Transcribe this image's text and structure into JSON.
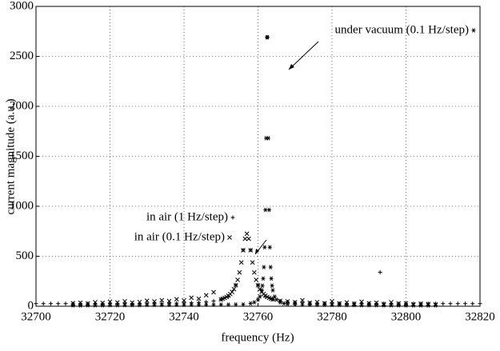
{
  "chart_data": {
    "type": "scatter",
    "xlabel": "frequency (Hz)",
    "ylabel": "current magnitude (a.u.)",
    "xlim": [
      32700,
      32820
    ],
    "xticks": [
      32700,
      32720,
      32740,
      32760,
      32780,
      32800,
      32820
    ],
    "ylim": [
      0,
      3000
    ],
    "yticks": [
      0,
      500,
      1000,
      1500,
      2000,
      2500,
      3000
    ],
    "grid": true,
    "series": [
      {
        "name": "in air (1 Hz/step)",
        "color": "#000000",
        "marker": "plus",
        "x": [
          32700,
          32702,
          32704,
          32706,
          32708,
          32710,
          32712,
          32714,
          32716,
          32718,
          32720,
          32722,
          32724,
          32726,
          32728,
          32730,
          32732,
          32734,
          32736,
          32738,
          32740,
          32742,
          32744,
          32746,
          32748,
          32750,
          32752,
          32754,
          32756,
          32758,
          32760,
          32762,
          32764,
          32766,
          32768,
          32770,
          32772,
          32774,
          32776,
          32778,
          32780,
          32782,
          32784,
          32786,
          32788,
          32790,
          32792,
          32794,
          32796,
          32798,
          32800,
          32802,
          32804,
          32806,
          32808,
          32810,
          32812,
          32814,
          32816,
          32818,
          32820,
          32793
        ],
        "values": [
          26,
          26,
          26,
          26,
          26,
          26,
          26,
          26,
          26,
          26,
          27,
          27,
          27,
          27,
          28,
          28,
          29,
          29,
          30,
          31,
          33,
          35,
          38,
          43,
          52,
          67,
          101,
          211,
          562,
          562,
          211,
          101,
          67,
          52,
          43,
          38,
          35,
          33,
          31,
          30,
          29,
          29,
          28,
          28,
          27,
          27,
          27,
          27,
          26,
          26,
          26,
          26,
          26,
          26,
          26,
          26,
          26,
          26,
          26,
          26,
          26,
          340
        ]
      },
      {
        "name": "in air (0.1 Hz/step)",
        "color": "#000000",
        "marker": "cross",
        "x": [
          32710,
          32712,
          32714,
          32716,
          32718,
          32720,
          32722,
          32724,
          32726,
          32728,
          32730,
          32732,
          32734,
          32736,
          32738,
          32740,
          32742,
          32744,
          32746,
          32748,
          32750,
          32750.5,
          32751,
          32751.5,
          32752,
          32752.5,
          32753,
          32753.5,
          32754,
          32754.5,
          32755,
          32755.5,
          32756,
          32756.5,
          32757,
          32757.5,
          32758,
          32758.5,
          32759,
          32759.5,
          32760,
          32760.5,
          32761,
          32761.5,
          32762,
          32762.5,
          32763,
          32763.5,
          32764,
          32766,
          32768,
          32770,
          32772,
          32774,
          32776,
          32778,
          32780,
          32782,
          32784,
          32786,
          32788,
          32790,
          32792,
          32794,
          32796,
          32798,
          32800,
          32802,
          32804,
          32806,
          32808
        ],
        "values": [
          30,
          35,
          28,
          40,
          33,
          45,
          38,
          50,
          36,
          42,
          55,
          48,
          60,
          52,
          70,
          58,
          85,
          75,
          110,
          140,
          68,
          75,
          83,
          93,
          105,
          122,
          143,
          171,
          210,
          264,
          338,
          438,
          560,
          675,
          725,
          675,
          560,
          438,
          338,
          264,
          210,
          171,
          143,
          122,
          105,
          93,
          83,
          75,
          68,
          55,
          48,
          40,
          60,
          35,
          42,
          30,
          50,
          28,
          38,
          25,
          45,
          30,
          35,
          22,
          40,
          28,
          30,
          20,
          25,
          22,
          18
        ]
      },
      {
        "name": "under vacuum (0.1 Hz/step)",
        "color": "#000000",
        "marker": "star",
        "x": [
          32710,
          32712,
          32714,
          32716,
          32718,
          32720,
          32722,
          32724,
          32726,
          32728,
          32730,
          32732,
          32734,
          32736,
          32738,
          32740,
          32742,
          32744,
          32746,
          32748,
          32750,
          32752,
          32754,
          32756,
          32758,
          32759,
          32760,
          32760.5,
          32761,
          32761.2,
          32761.4,
          32761.6,
          32761.8,
          32762,
          32762.2,
          32762.4,
          32762.6,
          32762.8,
          32763,
          32763.2,
          32763.4,
          32763.6,
          32763.8,
          32764,
          32764.5,
          32765,
          32766,
          32767,
          32768,
          32770,
          32772,
          32774,
          32776,
          32778,
          32780,
          32782,
          32784,
          32786,
          32788,
          32790,
          32792,
          32794,
          32796,
          32798,
          32800,
          32802,
          32804,
          32806,
          32808
        ],
        "values": [
          8,
          8,
          9,
          9,
          9,
          10,
          10,
          10,
          11,
          11,
          12,
          12,
          12,
          13,
          13,
          13,
          14,
          14,
          15,
          15,
          16,
          16,
          17,
          18,
          28,
          39,
          66,
          96,
          160,
          206,
          277,
          391,
          590,
          964,
          1681,
          2691,
          2691,
          1681,
          964,
          590,
          391,
          277,
          206,
          160,
          96,
          66,
          39,
          28,
          22,
          17,
          15,
          14,
          13,
          13,
          12,
          12,
          11,
          11,
          10,
          10,
          10,
          9,
          9,
          9,
          8,
          8,
          8,
          8,
          8
        ]
      }
    ]
  }
}
